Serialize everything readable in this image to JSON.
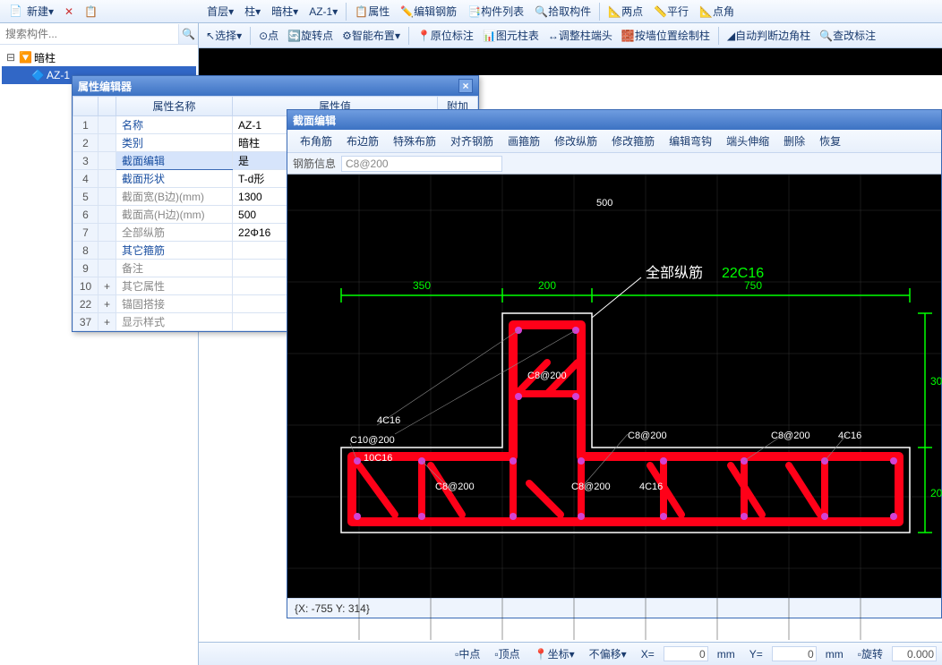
{
  "top": {
    "new": "新建",
    "dropdowns": [
      "首层",
      "柱",
      "暗柱",
      "AZ-1"
    ],
    "btn_prop": "属性",
    "btn_edit_rebar": "编辑钢筋",
    "btn_component_list": "构件列表",
    "btn_pick": "拾取构件",
    "btn_two_point": "两点",
    "btn_parallel": "平行",
    "btn_point_angle": "点角"
  },
  "toolbar2": {
    "select": "选择",
    "point": "点",
    "rotate_point": "旋转点",
    "smart": "智能布置",
    "origin_note": "原位标注",
    "tu_unit": "图元柱表",
    "adjust_end": "调整柱端头",
    "wall_draw": "按墙位置绘制柱",
    "auto_corner": "自动判断边角柱",
    "modify_note": "查改标注"
  },
  "sidebar": {
    "search_placeholder": "搜索构件...",
    "tree_parent": "暗柱",
    "tree_child": "AZ-1"
  },
  "prop": {
    "title": "属性编辑器",
    "headers": {
      "name": "属性名称",
      "value": "属性值",
      "extra": "附加"
    },
    "rows": [
      {
        "n": "1",
        "name": "名称",
        "val": "AZ-1",
        "link": true
      },
      {
        "n": "2",
        "name": "类别",
        "val": "暗柱",
        "link": true
      },
      {
        "n": "3",
        "name": "截面编辑",
        "val": "是",
        "link": true,
        "sel": true
      },
      {
        "n": "4",
        "name": "截面形状",
        "val": "T-d形",
        "link": true
      },
      {
        "n": "5",
        "name": "截面宽(B边)(mm)",
        "val": "1300"
      },
      {
        "n": "6",
        "name": "截面高(H边)(mm)",
        "val": "500"
      },
      {
        "n": "7",
        "name": "全部纵筋",
        "val": "22Φ16"
      },
      {
        "n": "8",
        "name": "其它箍筋",
        "val": "",
        "link": true
      },
      {
        "n": "9",
        "name": "备注",
        "val": ""
      },
      {
        "n": "10",
        "name": "其它属性",
        "val": "",
        "exp": "+"
      },
      {
        "n": "22",
        "name": "锚固搭接",
        "val": "",
        "exp": "+"
      },
      {
        "n": "37",
        "name": "显示样式",
        "val": "",
        "exp": "+"
      }
    ]
  },
  "sect": {
    "title": "截面编辑",
    "menu": [
      "布角筋",
      "布边筋",
      "特殊布筋",
      "对齐钢筋",
      "画箍筋",
      "修改纵筋",
      "修改箍筋",
      "编辑弯钩",
      "端头伸缩",
      "删除",
      "恢复"
    ],
    "info_label": "钢筋信息",
    "info_value": "C8@200",
    "status": "{X: -755 Y: 314}",
    "colors": {
      "bg": "#000000",
      "rebar": "#ff0018",
      "dim": "#00ff00",
      "frame": "#ffffff",
      "grid": "#333333",
      "dot": "#d342d3"
    },
    "dims": {
      "w1": "350",
      "w2": "200",
      "w3": "750",
      "h1": "30",
      "h2": "20",
      "top_dim": "500"
    },
    "legend_label": "全部纵筋",
    "legend_value": "22C16",
    "annotations": [
      "C8@200",
      "4C16",
      "C10@200",
      "10C16",
      "C8@200",
      "C8@200",
      "4C16",
      "C8@200",
      "C8@200",
      "4C16"
    ]
  },
  "status": {
    "midpoint": "中点",
    "vertex": "顶点",
    "coord": "坐标",
    "unshift": "不偏移",
    "rotate": "旋转",
    "x": "0",
    "y": "0",
    "mm": "mm",
    "deg": "0.000"
  }
}
